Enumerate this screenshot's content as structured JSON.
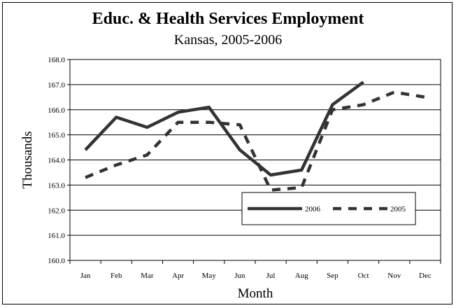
{
  "chart_data": {
    "type": "line",
    "title": "Educ. & Health Services Employment",
    "subtitle": "Kansas, 2005-2006",
    "xlabel": "Month",
    "ylabel": "Thousands",
    "categories": [
      "Jan",
      "Feb",
      "Mar",
      "Apr",
      "May",
      "Jun",
      "Jul",
      "Aug",
      "Sep",
      "Oct",
      "Nov",
      "Dec"
    ],
    "ylim": [
      160.0,
      168.0
    ],
    "yticks": [
      "160.0",
      "161.0",
      "162.0",
      "163.0",
      "164.0",
      "165.0",
      "166.0",
      "167.0",
      "168.0"
    ],
    "grid": true,
    "legend_position": "lower-right",
    "series": [
      {
        "name": "2006",
        "style": "solid",
        "color": "#333333",
        "values": [
          164.4,
          165.7,
          165.3,
          165.9,
          166.1,
          164.4,
          163.4,
          163.6,
          166.2,
          167.1,
          null,
          null
        ]
      },
      {
        "name": "2005",
        "style": "dashed",
        "color": "#333333",
        "values": [
          163.3,
          163.8,
          164.2,
          165.5,
          165.5,
          165.4,
          162.8,
          162.9,
          166.0,
          166.2,
          166.7,
          166.5
        ]
      }
    ]
  }
}
